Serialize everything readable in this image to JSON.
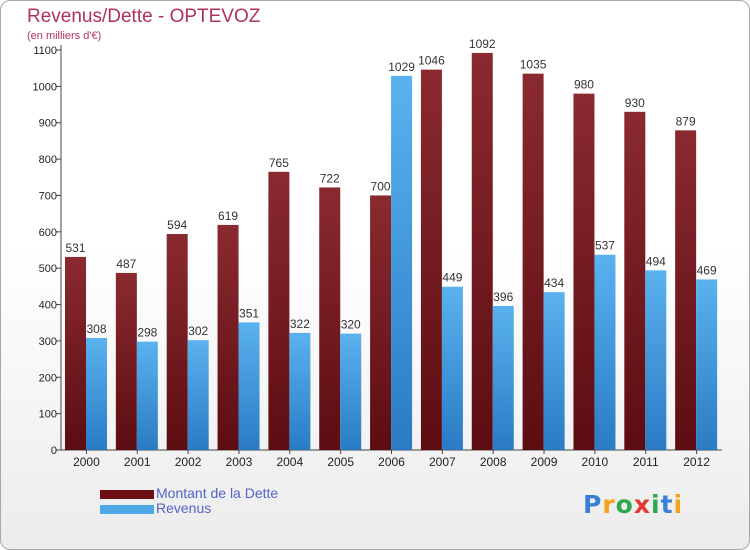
{
  "chart_data": {
    "type": "bar",
    "title": "Revenus/Dette - OPTEVOZ",
    "subtitle": "(en milliers d'€)",
    "categories": [
      "2000",
      "2001",
      "2002",
      "2003",
      "2004",
      "2005",
      "2006",
      "2007",
      "2008",
      "2009",
      "2010",
      "2011",
      "2012"
    ],
    "series": [
      {
        "name": "Montant de la Dette",
        "values": [
          531,
          487,
          594,
          619,
          765,
          722,
          700,
          1046,
          1092,
          1035,
          980,
          930,
          879
        ]
      },
      {
        "name": "Revenus",
        "values": [
          308,
          298,
          302,
          351,
          322,
          320,
          1029,
          449,
          396,
          434,
          537,
          494,
          469
        ]
      }
    ],
    "ylim": [
      0,
      1100
    ],
    "yticks": [
      "0",
      "100",
      "200",
      "300",
      "400",
      "500",
      "600",
      "700",
      "800",
      "900",
      "1000",
      "1100"
    ],
    "grid": false,
    "legend": "bottom-left",
    "colors": {
      "dette": "#7a1f26",
      "revenus": "#4ea8e8",
      "title": "#b03060",
      "legend_text": "#5563c8"
    }
  },
  "logo": {
    "letters": [
      "P",
      "r",
      "o",
      "x",
      "i",
      "t",
      "i"
    ],
    "colors": [
      "#3a7fd5",
      "#f2a21b",
      "#2fa84f",
      "#e33b2e",
      "#2fa84f",
      "#3a7fd5",
      "#f2a21b"
    ]
  }
}
